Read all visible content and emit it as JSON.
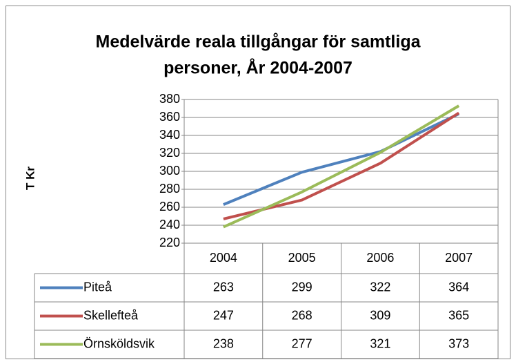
{
  "chart_data": {
    "type": "line",
    "title": [
      "Medelvärde reala tillgångar för samtliga",
      "personer, År 2004-2007"
    ],
    "y_label": "T Kr",
    "categories": [
      "2004",
      "2005",
      "2006",
      "2007"
    ],
    "series": [
      {
        "name": "Piteå",
        "color": "#4f81bd",
        "values": [
          263,
          299,
          322,
          364
        ]
      },
      {
        "name": "Skellefteå",
        "color": "#c0504d",
        "values": [
          247,
          268,
          309,
          365
        ]
      },
      {
        "name": "Örnsköldsvik",
        "color": "#9bbb59",
        "values": [
          238,
          277,
          321,
          373
        ]
      }
    ],
    "ylim": [
      220,
      380
    ],
    "yticks": [
      220,
      240,
      260,
      280,
      300,
      320,
      340,
      360,
      380
    ],
    "grid": true
  }
}
